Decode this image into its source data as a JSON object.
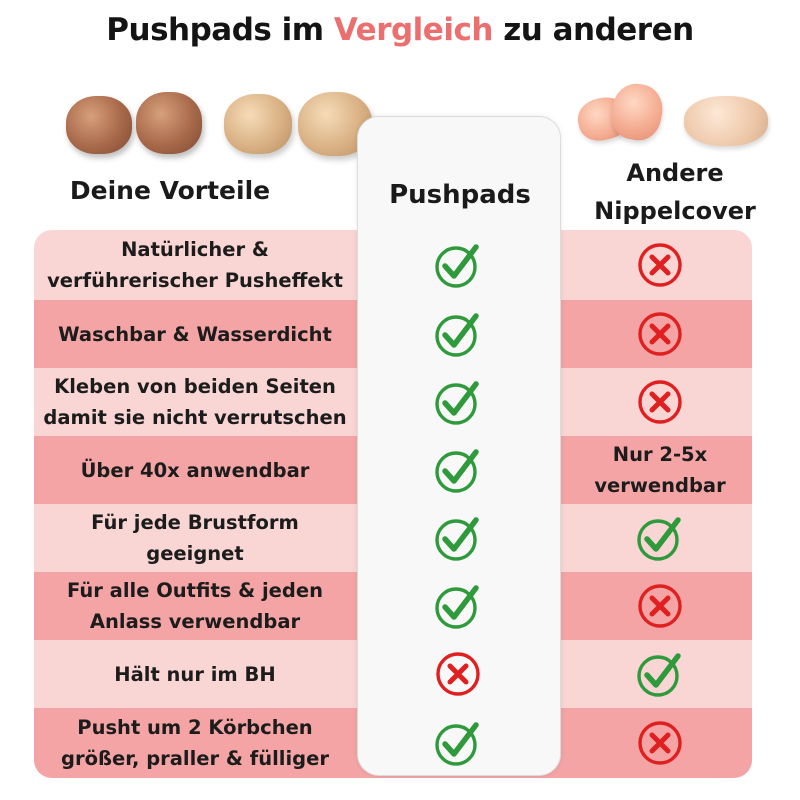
{
  "title": {
    "part1": "Pushpads im ",
    "highlight": "Vergleich",
    "part2": " zu anderen"
  },
  "headers": {
    "advantages": "Deine Vorteile",
    "pushpads": "Pushpads",
    "others_line1": "Andere",
    "others_line2": "Nippelcover"
  },
  "colors": {
    "check": "#2e9a3c",
    "cross": "#e02020",
    "highlight": "#ec6f6f",
    "row_light": "#f9d5d4",
    "row_dark": "#f4a4a4"
  },
  "rows": [
    {
      "line1": "Natürlicher &",
      "line2": "verführerischer Pusheffekt",
      "pushpads": "check",
      "others": "cross",
      "others_text": ""
    },
    {
      "line1": "Waschbar & Wasserdicht",
      "line2": "",
      "pushpads": "check",
      "others": "cross",
      "others_text": ""
    },
    {
      "line1": "Kleben von beiden Seiten",
      "line2": "damit sie nicht verrutschen",
      "pushpads": "check",
      "others": "cross",
      "others_text": ""
    },
    {
      "line1": "Über 40x anwendbar",
      "line2": "",
      "pushpads": "check",
      "others": "text",
      "others_text": "Nur 2-5x verwendbar"
    },
    {
      "line1": "Für jede Brustform",
      "line2": "geeignet",
      "pushpads": "check",
      "others": "check",
      "others_text": ""
    },
    {
      "line1": "Für alle Outfits & jeden",
      "line2": "Anlass verwendbar",
      "pushpads": "check",
      "others": "cross",
      "others_text": ""
    },
    {
      "line1": "Hält nur im BH",
      "line2": "",
      "pushpads": "cross",
      "others": "check",
      "others_text": ""
    },
    {
      "line1": "Pusht um 2 Körbchen",
      "line2": "größer, praller & fülliger",
      "pushpads": "check",
      "others": "cross",
      "others_text": ""
    }
  ]
}
